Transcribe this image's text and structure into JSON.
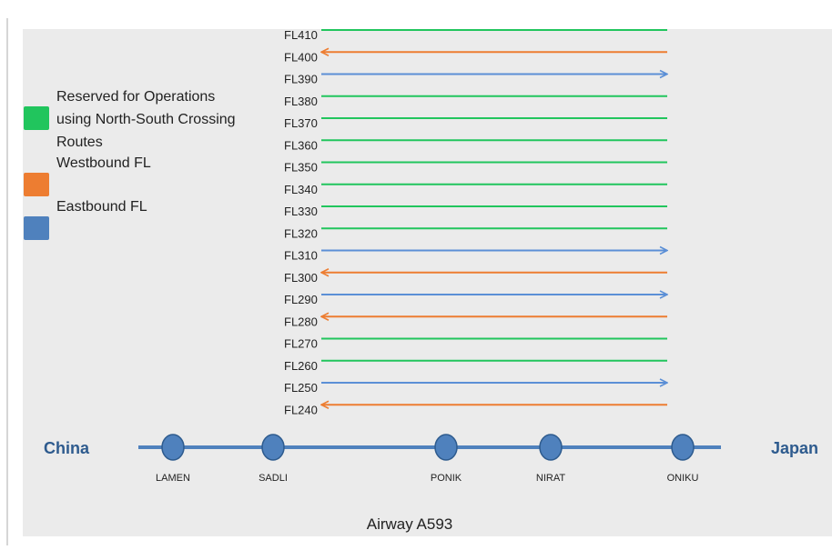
{
  "legend": [
    {
      "lines": [
        "Reserved for Operations",
        "using North-South Crossing",
        "Routes"
      ],
      "color": "#21c55d"
    },
    {
      "lines": [
        "Westbound FL"
      ],
      "color": "#ed7d31"
    },
    {
      "lines": [
        "Eastbound FL"
      ],
      "color": "#4f81bd"
    }
  ],
  "levels": [
    {
      "label": "FL410",
      "color": "#21c55d",
      "arrow": "none"
    },
    {
      "label": "FL400",
      "color": "#ed7d31",
      "arrow": "left"
    },
    {
      "label": "FL390",
      "color": "#5b8fd6",
      "arrow": "right"
    },
    {
      "label": "FL380",
      "color": "#21c55d",
      "arrow": "none"
    },
    {
      "label": "FL370",
      "color": "#21c55d",
      "arrow": "none"
    },
    {
      "label": "FL360",
      "color": "#21c55d",
      "arrow": "none"
    },
    {
      "label": "FL350",
      "color": "#21c55d",
      "arrow": "none"
    },
    {
      "label": "FL340",
      "color": "#21c55d",
      "arrow": "none"
    },
    {
      "label": "FL330",
      "color": "#21c55d",
      "arrow": "none"
    },
    {
      "label": "FL320",
      "color": "#21c55d",
      "arrow": "none"
    },
    {
      "label": "FL310",
      "color": "#5b8fd6",
      "arrow": "right"
    },
    {
      "label": "FL300",
      "color": "#ed7d31",
      "arrow": "left"
    },
    {
      "label": "FL290",
      "color": "#5b8fd6",
      "arrow": "right"
    },
    {
      "label": "FL280",
      "color": "#ed7d31",
      "arrow": "left"
    },
    {
      "label": "FL270",
      "color": "#21c55d",
      "arrow": "none"
    },
    {
      "label": "FL260",
      "color": "#21c55d",
      "arrow": "none"
    },
    {
      "label": "FL250",
      "color": "#5b8fd6",
      "arrow": "right"
    },
    {
      "label": "FL240",
      "color": "#ed7d31",
      "arrow": "left"
    }
  ],
  "west_end": "China",
  "east_end": "Japan",
  "waypoints": [
    "LAMEN",
    "SADLI",
    "PONIK",
    "NIRAT",
    "ONIKU"
  ],
  "caption": "Airway A593"
}
